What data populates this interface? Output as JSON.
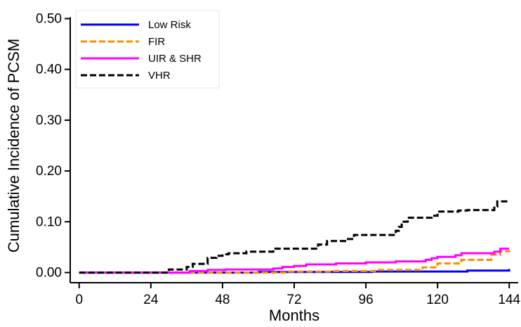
{
  "chart_data": {
    "type": "line",
    "title": "",
    "xlabel": "Months",
    "ylabel": "Cumulative Incidence of PCSM",
    "xlim": [
      -3,
      147
    ],
    "ylim": [
      -0.02,
      0.52
    ],
    "x_ticks": [
      0,
      24,
      48,
      72,
      96,
      120,
      144
    ],
    "x_tick_labels": [
      "0",
      "24",
      "48",
      "72",
      "96",
      "120",
      "144"
    ],
    "y_ticks": [
      0.0,
      0.1,
      0.2,
      0.3,
      0.4,
      0.5
    ],
    "y_tick_labels": [
      "0.00",
      "0.10",
      "0.20",
      "0.30",
      "0.40",
      "0.50"
    ],
    "grid": false,
    "legend_position": "top-left",
    "series": [
      {
        "name": "Low Risk",
        "color": "#0000ff",
        "dash": "solid",
        "x": [
          0,
          35,
          60,
          98,
          130,
          144
        ],
        "y": [
          0.0,
          0.0,
          0.001,
          0.002,
          0.004,
          0.007
        ]
      },
      {
        "name": "FIR",
        "color": "#ff8c00",
        "dash": "dashed",
        "x": [
          0,
          40,
          70,
          85,
          100,
          115,
          120,
          128,
          138,
          141,
          144
        ],
        "y": [
          0.0,
          0.0,
          0.002,
          0.003,
          0.005,
          0.01,
          0.018,
          0.025,
          0.035,
          0.042,
          0.043
        ]
      },
      {
        "name": "UIR & SHR",
        "color": "#ff00ff",
        "dash": "solid",
        "x": [
          0,
          28,
          37,
          43,
          49,
          65,
          68,
          72,
          76,
          86,
          96,
          106,
          116,
          118,
          120,
          126,
          128,
          139,
          141,
          144
        ],
        "y": [
          0.0,
          0.0,
          0.003,
          0.005,
          0.006,
          0.008,
          0.011,
          0.013,
          0.016,
          0.018,
          0.02,
          0.022,
          0.025,
          0.028,
          0.031,
          0.034,
          0.038,
          0.041,
          0.047,
          0.047
        ]
      },
      {
        "name": "VHR",
        "color": "#000000",
        "dash": "dashed",
        "x": [
          0,
          28,
          30,
          36,
          38,
          43,
          46,
          48,
          50,
          56,
          65,
          78,
          80,
          83,
          90,
          92,
          100,
          106,
          107,
          108,
          110,
          118,
          120,
          127,
          130,
          139,
          140,
          144
        ],
        "y": [
          0.0,
          0.0,
          0.006,
          0.011,
          0.017,
          0.029,
          0.033,
          0.036,
          0.038,
          0.041,
          0.047,
          0.047,
          0.055,
          0.062,
          0.066,
          0.074,
          0.074,
          0.082,
          0.09,
          0.1,
          0.108,
          0.112,
          0.12,
          0.122,
          0.123,
          0.13,
          0.14,
          0.141
        ]
      }
    ]
  }
}
